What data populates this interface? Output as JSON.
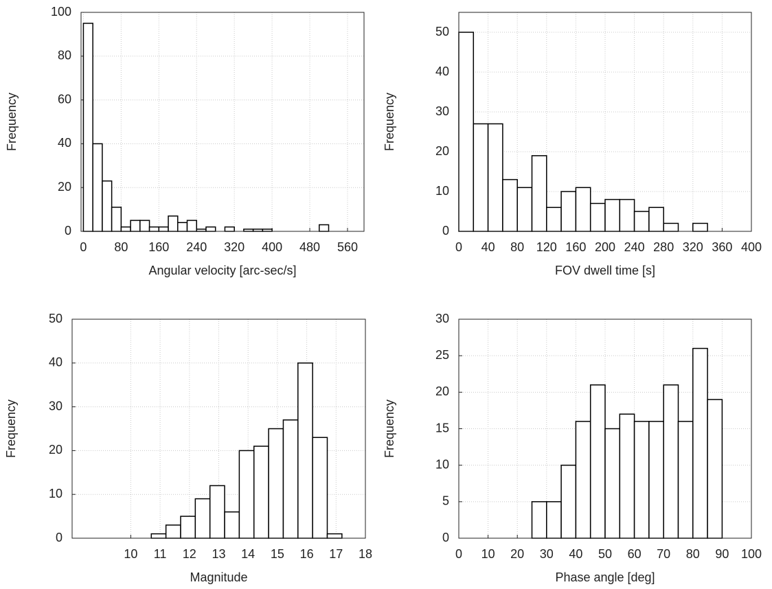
{
  "chart_data": [
    {
      "type": "histogram",
      "xlabel": "Angular velocity [arc-sec/s]",
      "ylabel": "Frequency",
      "bins": [
        0,
        20,
        40,
        60,
        80,
        100,
        120,
        140,
        160,
        180,
        200,
        220,
        240,
        260,
        280,
        300,
        320,
        340,
        360,
        380,
        400,
        420,
        440,
        460,
        480,
        500,
        520
      ],
      "counts": [
        95,
        40,
        23,
        11,
        2,
        5,
        5,
        2,
        2,
        7,
        4,
        5,
        1,
        2,
        0,
        2,
        0,
        1,
        1,
        1,
        0,
        0,
        0,
        0,
        0,
        3
      ],
      "xlim": [
        -5,
        595
      ],
      "ylim": [
        0,
        100
      ],
      "xticks": [
        0,
        80,
        160,
        240,
        320,
        400,
        480,
        560
      ],
      "yticks": [
        0,
        20,
        40,
        60,
        80,
        100
      ],
      "grid": true,
      "color": "#ffffff"
    },
    {
      "type": "histogram",
      "xlabel": "FOV dwell time [s]",
      "ylabel": "Frequency",
      "bins": [
        0,
        20,
        40,
        60,
        80,
        100,
        120,
        140,
        160,
        180,
        200,
        220,
        240,
        260,
        280,
        300,
        320,
        340
      ],
      "counts": [
        50,
        27,
        27,
        13,
        11,
        19,
        6,
        10,
        11,
        7,
        8,
        8,
        5,
        6,
        2,
        0,
        2
      ],
      "xlim": [
        0,
        400
      ],
      "ylim": [
        0,
        55
      ],
      "xticks": [
        0,
        40,
        80,
        120,
        160,
        200,
        240,
        280,
        320,
        360,
        400
      ],
      "yticks": [
        0,
        10,
        20,
        30,
        40,
        50
      ],
      "grid": true,
      "color": "#ffffff"
    },
    {
      "type": "histogram",
      "xlabel": "Magnitude",
      "ylabel": "Frequency",
      "bins": [
        10.7,
        11.2,
        11.7,
        12.2,
        12.7,
        13.2,
        13.7,
        14.2,
        14.7,
        15.2,
        15.7,
        16.2,
        16.7,
        17.2
      ],
      "counts": [
        1,
        3,
        5,
        9,
        12,
        6,
        20,
        21,
        25,
        27,
        40,
        23,
        1
      ],
      "xlim": [
        8,
        18
      ],
      "ylim": [
        0,
        50
      ],
      "xticks": [
        10,
        11,
        12,
        13,
        14,
        15,
        16,
        17,
        18
      ],
      "yticks": [
        0,
        10,
        20,
        30,
        40,
        50
      ],
      "grid": true,
      "color": "#ffffff"
    },
    {
      "type": "histogram",
      "xlabel": "Phase angle [deg]",
      "ylabel": "Frequency",
      "bins": [
        25,
        30,
        35,
        40,
        45,
        50,
        55,
        60,
        65,
        70,
        75,
        80,
        85,
        90
      ],
      "counts": [
        5,
        5,
        10,
        16,
        21,
        15,
        17,
        16,
        16,
        21,
        16,
        26,
        19
      ],
      "xlim": [
        0,
        100
      ],
      "ylim": [
        0,
        30
      ],
      "xticks": [
        0,
        10,
        20,
        30,
        40,
        50,
        60,
        70,
        80,
        90,
        100
      ],
      "yticks": [
        0,
        5,
        10,
        15,
        20,
        25,
        30
      ],
      "grid": true,
      "color": "#ffffff"
    }
  ]
}
